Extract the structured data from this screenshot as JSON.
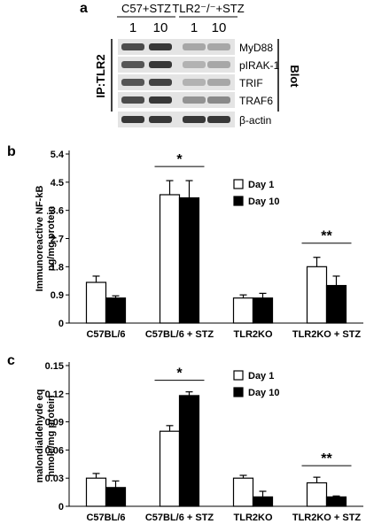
{
  "panel_a": {
    "panel_label": "a",
    "group_labels": [
      "C57+STZ",
      "TLR2⁻/⁻+STZ"
    ],
    "lane_labels": [
      "1",
      "10",
      "1",
      "10"
    ],
    "side_label": "IP:TLR2",
    "blot_label": "Blot",
    "bands": [
      {
        "label": "MyD88",
        "intensity": [
          0.75,
          0.85,
          0.3,
          0.3
        ]
      },
      {
        "label": "pIRAK-1",
        "intensity": [
          0.7,
          0.85,
          0.25,
          0.3
        ]
      },
      {
        "label": "TRIF",
        "intensity": [
          0.7,
          0.8,
          0.25,
          0.3
        ]
      },
      {
        "label": "TRAF6",
        "intensity": [
          0.75,
          0.85,
          0.4,
          0.45
        ]
      },
      {
        "label": "β-actin",
        "intensity": [
          0.85,
          0.85,
          0.85,
          0.85
        ]
      }
    ],
    "colors": {
      "band": "#1a1a1a",
      "background": "#e4e4e4"
    }
  },
  "chart_data": [
    {
      "type": "bar",
      "panel_label": "b",
      "categories": [
        "C57BL/6",
        "C57BL/6 + STZ",
        "TLR2KO",
        "TLR2KO + STZ"
      ],
      "series": [
        {
          "name": "Day 1",
          "values": [
            1.3,
            4.1,
            0.8,
            1.8
          ],
          "errors": [
            0.2,
            0.45,
            0.1,
            0.3
          ],
          "color": "#ffffff"
        },
        {
          "name": "Day 10",
          "values": [
            0.8,
            4.0,
            0.8,
            1.2
          ],
          "errors": [
            0.07,
            0.55,
            0.15,
            0.3
          ],
          "color": "#000000"
        }
      ],
      "ylabel": [
        "Immunoreactive NF-kB",
        "ng/mg protein"
      ],
      "ylim": [
        0,
        5.4
      ],
      "yticks": [
        0,
        0.9,
        1.8,
        2.7,
        3.6,
        4.5,
        5.4
      ],
      "ytick_labels": [
        "0",
        "0.9",
        "1.8",
        "2.7",
        "3.6",
        "4.5",
        "5.4"
      ],
      "legend_position": "top-right",
      "annotations": [
        {
          "text": "*",
          "category": 1
        },
        {
          "text": "**",
          "category": 3
        }
      ]
    },
    {
      "type": "bar",
      "panel_label": "c",
      "categories": [
        "C57BL/6",
        "C57BL/6 + STZ",
        "TLR2KO",
        "TLR2KO + STZ"
      ],
      "series": [
        {
          "name": "Day 1",
          "values": [
            0.03,
            0.08,
            0.03,
            0.025
          ],
          "errors": [
            0.005,
            0.006,
            0.003,
            0.006
          ],
          "color": "#ffffff"
        },
        {
          "name": "Day 10",
          "values": [
            0.02,
            0.118,
            0.01,
            0.01
          ],
          "errors": [
            0.007,
            0.004,
            0.006,
            0.001
          ],
          "color": "#000000"
        }
      ],
      "ylabel": [
        "malondialdehyde eq",
        "nmole/mg protein"
      ],
      "ylim": [
        0,
        0.15
      ],
      "yticks": [
        0,
        0.03,
        0.06,
        0.09,
        0.12,
        0.15
      ],
      "ytick_labels": [
        "0",
        "0.03",
        "0.06",
        "0.09",
        "0.12",
        "0.15"
      ],
      "legend_position": "top-right",
      "annotations": [
        {
          "text": "*",
          "category": 1
        },
        {
          "text": "**",
          "category": 3
        }
      ]
    }
  ]
}
